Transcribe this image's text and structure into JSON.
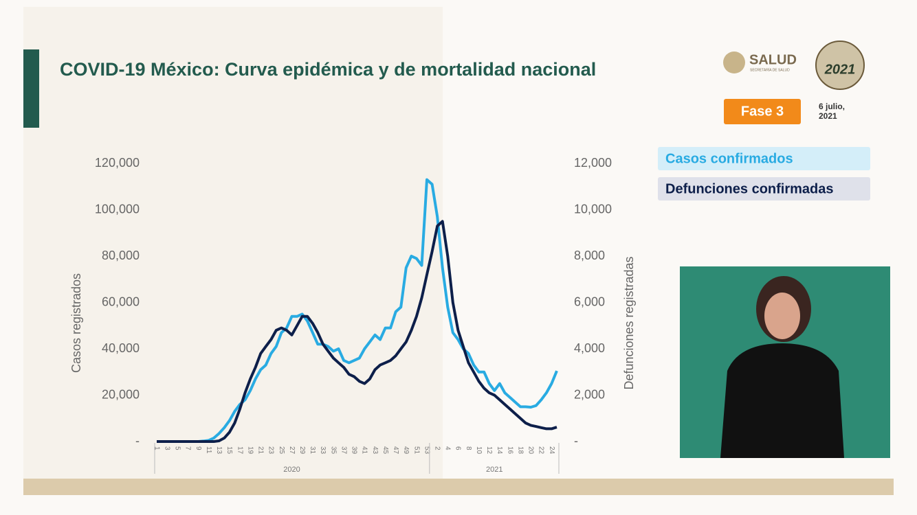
{
  "header": {
    "title": "COVID-19 México: Curva epidémica y de mortalidad nacional",
    "brand": "SALUD",
    "brand_sub": "SECRETARÍA DE SALUD",
    "logo_year": "2021",
    "badge": "Fase 3",
    "date_lines": [
      "6 julio,",
      "2021"
    ]
  },
  "chart_data": {
    "type": "line",
    "categories": [
      "1",
      null,
      "3",
      null,
      "5",
      null,
      "7",
      null,
      "9",
      null,
      "11",
      null,
      "13",
      null,
      "15",
      null,
      "17",
      null,
      "19",
      null,
      "21",
      null,
      "23",
      null,
      "25",
      null,
      "27",
      null,
      "29",
      null,
      "31",
      null,
      "33",
      null,
      "35",
      null,
      "37",
      null,
      "39",
      null,
      "41",
      null,
      "43",
      null,
      "45",
      null,
      "47",
      null,
      "49",
      null,
      "51",
      null,
      "53",
      null,
      "2",
      null,
      "4",
      null,
      "6",
      null,
      "8",
      null,
      "10",
      null,
      "12",
      null,
      "14",
      null,
      "16",
      null,
      "18",
      null,
      "20",
      null,
      "22",
      null,
      "24",
      null
    ],
    "x_groups": [
      {
        "label": "2020",
        "count": 53
      },
      {
        "label": "2021",
        "count": 25
      }
    ],
    "ylabel": "Casos registrados",
    "y2label": "Defunciones registradas",
    "ylim": [
      0,
      120000
    ],
    "yticks": [
      {
        "value": 0,
        "label": "-"
      },
      {
        "value": 20000,
        "label": "20,000"
      },
      {
        "value": 40000,
        "label": "40,000"
      },
      {
        "value": 60000,
        "label": "60,000"
      },
      {
        "value": 80000,
        "label": "80,000"
      },
      {
        "value": 100000,
        "label": "100,000"
      },
      {
        "value": 120000,
        "label": "120,000"
      }
    ],
    "y2lim": [
      0,
      12000
    ],
    "y2ticks": [
      {
        "value": 0,
        "label": "-"
      },
      {
        "value": 2000,
        "label": "2,000"
      },
      {
        "value": 4000,
        "label": "4,000"
      },
      {
        "value": 6000,
        "label": "6,000"
      },
      {
        "value": 8000,
        "label": "8,000"
      },
      {
        "value": 10000,
        "label": "10,000"
      },
      {
        "value": 12000,
        "label": "12,000"
      }
    ],
    "series": [
      {
        "name": "Casos confirmados",
        "color": "#29abe2",
        "values": [
          0,
          0,
          0,
          0,
          0,
          0,
          0,
          0,
          0,
          200,
          500,
          1500,
          3500,
          6000,
          9000,
          13000,
          16000,
          18000,
          22000,
          27000,
          31000,
          33000,
          38000,
          41000,
          47000,
          49000,
          54000,
          54000,
          55000,
          52000,
          47000,
          42000,
          42000,
          41000,
          39000,
          40000,
          35000,
          34000,
          35000,
          36000,
          40000,
          43000,
          46000,
          44000,
          49000,
          49000,
          56000,
          58000,
          75000,
          80000,
          79000,
          76000,
          113000,
          111000,
          97000,
          75000,
          58000,
          47000,
          44000,
          40000,
          38000,
          33000,
          30000,
          30000,
          25000,
          22000,
          25000,
          21000,
          19000,
          17000,
          15000,
          15000,
          14800,
          15500,
          18000,
          21000,
          25000,
          30500
        ]
      },
      {
        "name": "Defunciones confirmadas",
        "color": "#0d1f4a",
        "axis": "y2",
        "values": [
          0,
          0,
          0,
          0,
          0,
          0,
          0,
          0,
          0,
          0,
          0,
          0,
          30,
          150,
          400,
          800,
          1400,
          2100,
          2700,
          3200,
          3800,
          4100,
          4400,
          4800,
          4900,
          4800,
          4600,
          5000,
          5400,
          5400,
          5100,
          4700,
          4200,
          3900,
          3600,
          3400,
          3200,
          2900,
          2800,
          2600,
          2500,
          2700,
          3100,
          3300,
          3400,
          3500,
          3700,
          4000,
          4300,
          4800,
          5400,
          6200,
          7200,
          8200,
          9300,
          9500,
          8000,
          6000,
          4800,
          4100,
          3400,
          3000,
          2600,
          2300,
          2100,
          2000,
          1800,
          1600,
          1400,
          1200,
          1000,
          800,
          700,
          650,
          600,
          550,
          550,
          620
        ]
      }
    ]
  }
}
